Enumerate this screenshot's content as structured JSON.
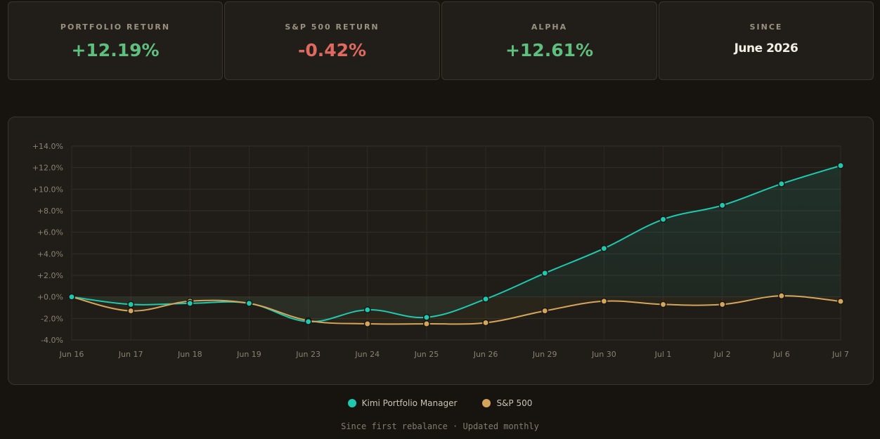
{
  "stats": [
    {
      "label": "PORTFOLIO RETURN",
      "value": "+12.19%",
      "tone": "pos"
    },
    {
      "label": "S&P 500 RETURN",
      "value": "-0.42%",
      "tone": "neg"
    },
    {
      "label": "ALPHA",
      "value": "+12.61%",
      "tone": "pos"
    },
    {
      "label": "SINCE",
      "value": "June 2026",
      "tone": "plain"
    }
  ],
  "chart_data": {
    "type": "line",
    "categories": [
      "Jun 16",
      "Jun 17",
      "Jun 18",
      "Jun 19",
      "Jun 23",
      "Jun 24",
      "Jun 25",
      "Jun 26",
      "Jun 29",
      "Jun 30",
      "Jul 1",
      "Jul 2",
      "Jul 6",
      "Jul 7"
    ],
    "series": [
      {
        "name": "Kimi Portfolio Manager",
        "color": "#1ec9b0",
        "values": [
          0.0,
          -0.7,
          -0.6,
          -0.6,
          -2.3,
          -1.2,
          -1.9,
          -0.2,
          2.2,
          4.5,
          7.2,
          8.5,
          10.5,
          12.19
        ]
      },
      {
        "name": "S&P 500",
        "color": "#d4a55a",
        "values": [
          0.0,
          -1.3,
          -0.4,
          -0.6,
          -2.2,
          -2.5,
          -2.5,
          -2.4,
          -1.3,
          -0.4,
          -0.7,
          -0.7,
          0.1,
          -0.42
        ]
      }
    ],
    "ylim": [
      -4,
      14
    ],
    "yticks": [
      "+14.0%",
      "+12.0%",
      "+10.0%",
      "+8.0%",
      "+6.0%",
      "+4.0%",
      "+2.0%",
      "+0.0%",
      "-2.0%",
      "-4.0%"
    ],
    "ytick_values": [
      14,
      12,
      10,
      8,
      6,
      4,
      2,
      0,
      -2,
      -4
    ],
    "grid": true,
    "legend_position": "bottom"
  },
  "legend": [
    {
      "label": "Kimi Portfolio Manager",
      "color": "#1ec9b0"
    },
    {
      "label": "S&P 500",
      "color": "#d4a55a"
    }
  ],
  "footnote": "Since first rebalance · Updated monthly"
}
